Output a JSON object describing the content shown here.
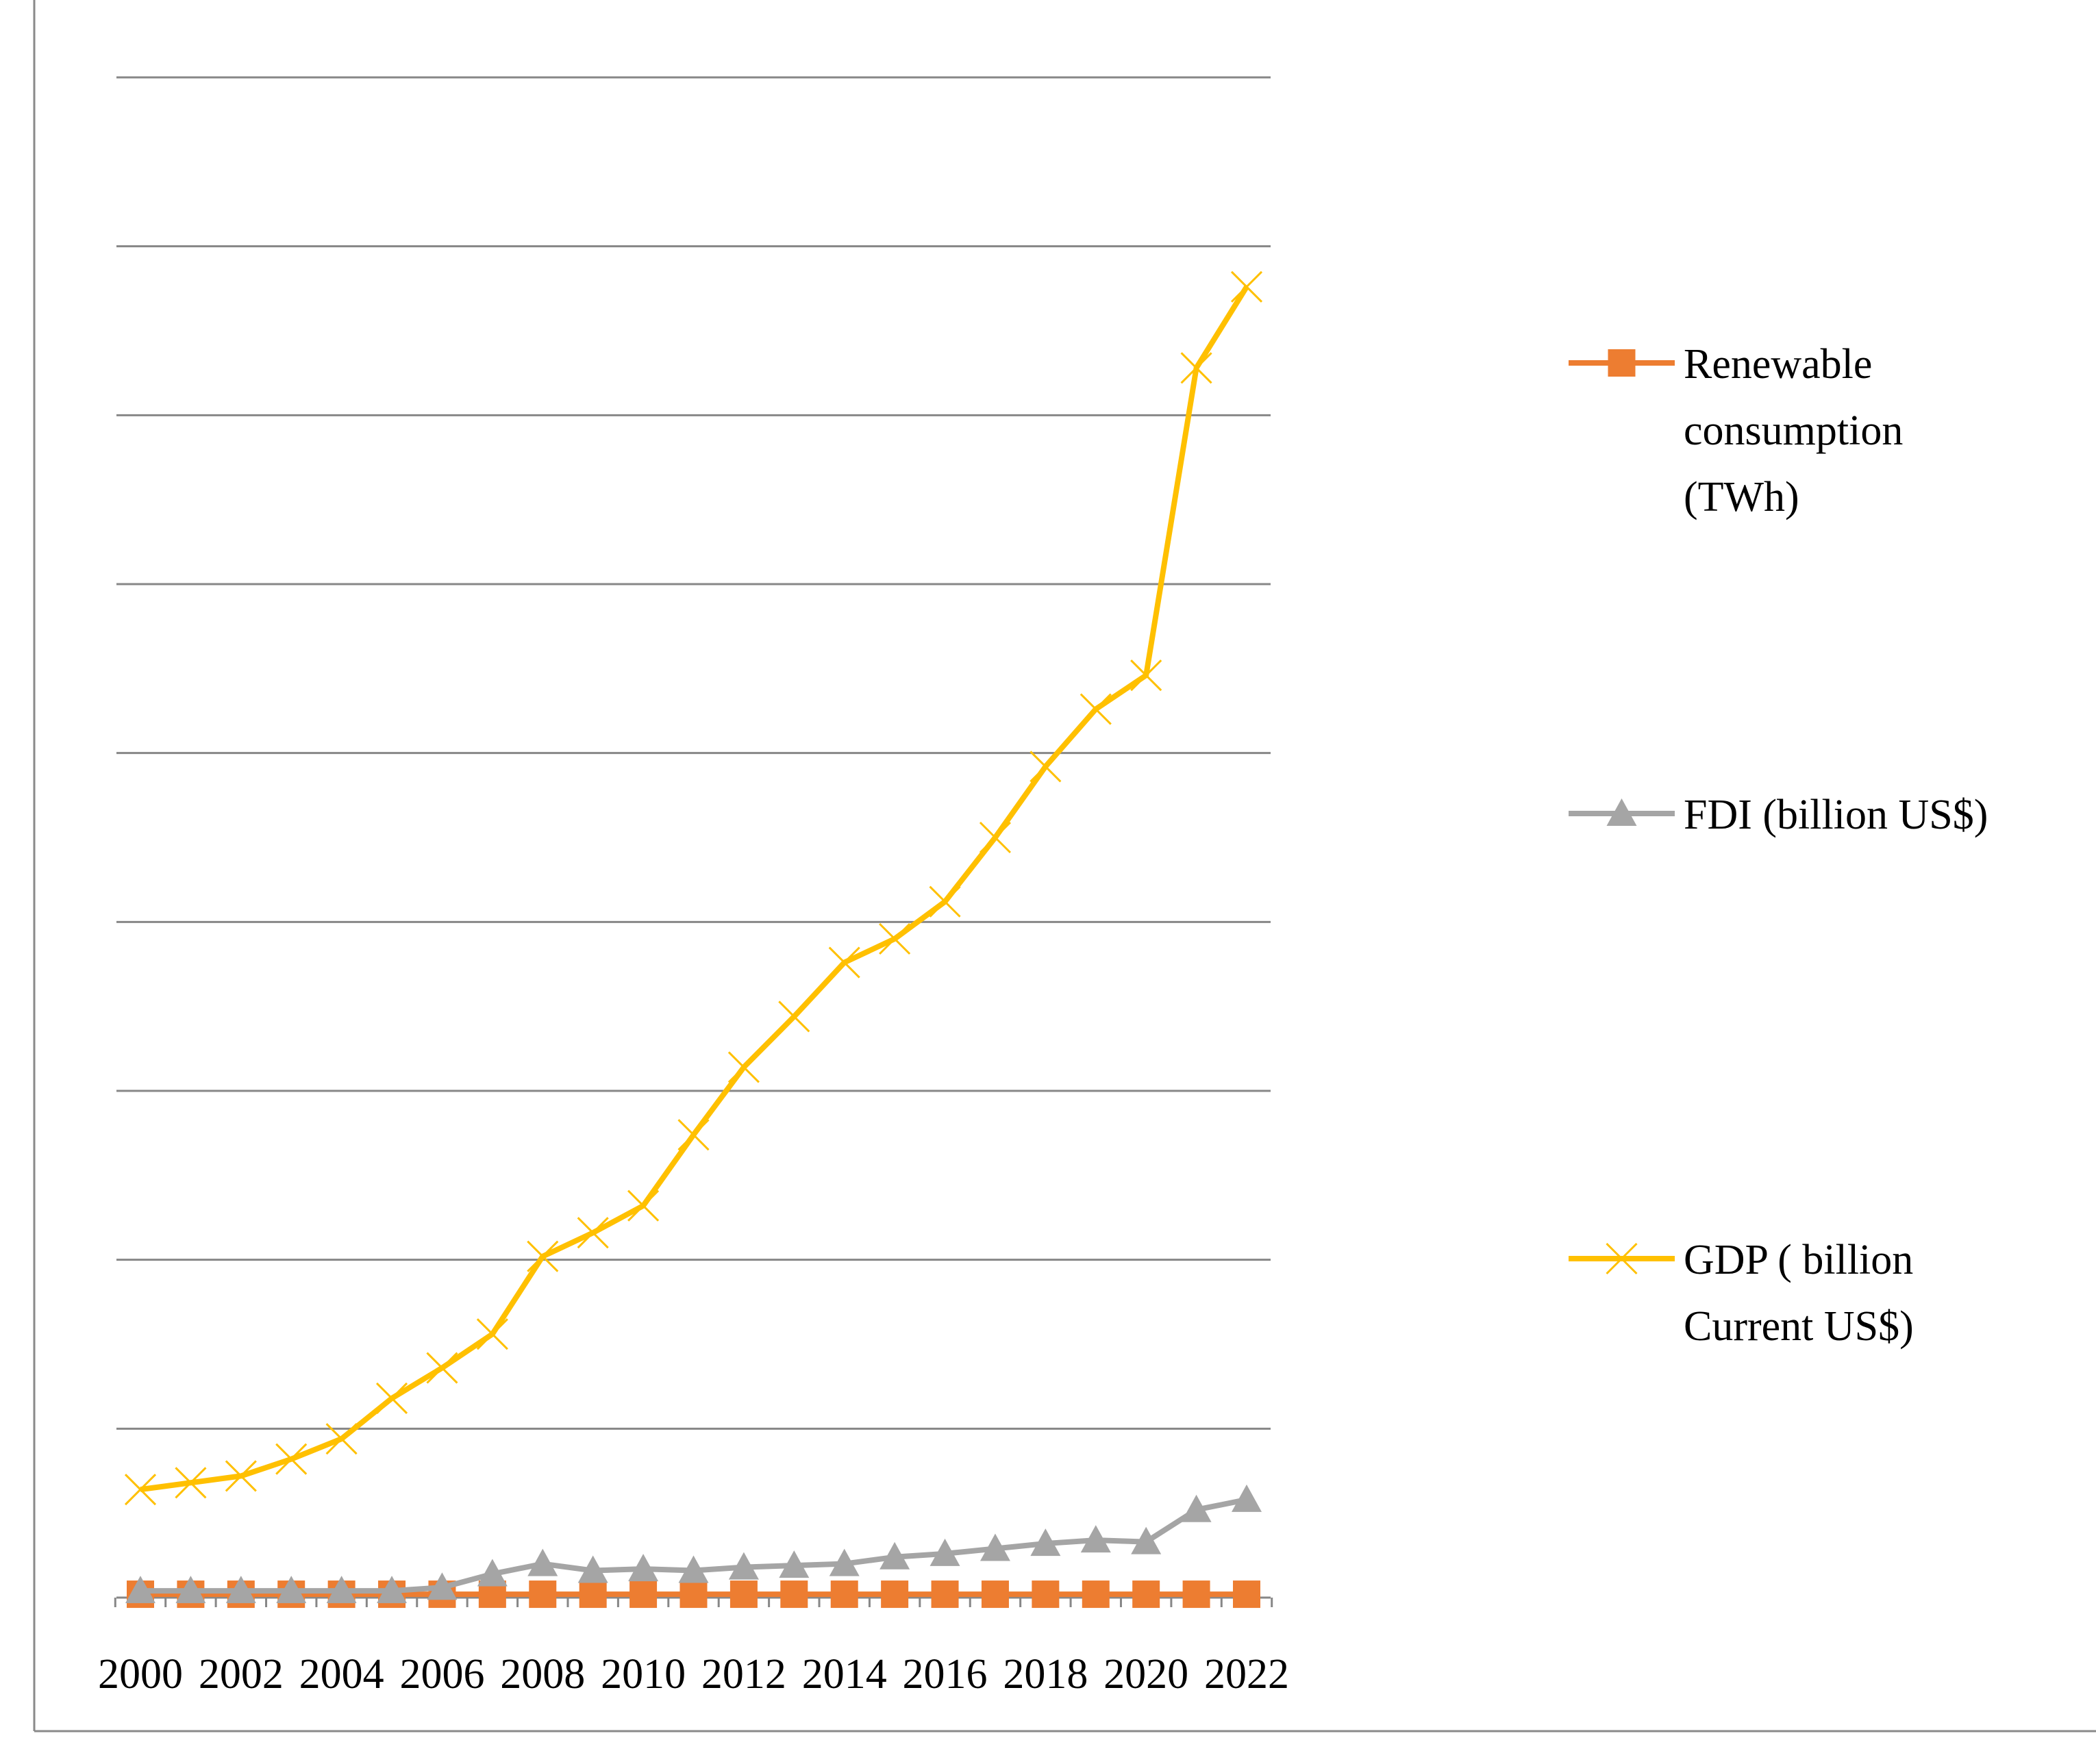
{
  "chart_data": {
    "type": "line",
    "title": "",
    "xlabel": "",
    "ylabel": "",
    "grid": true,
    "legend_position": "right",
    "ylim": [
      0,
      450
    ],
    "x": [
      "2000",
      "2001",
      "2002",
      "2003",
      "2004",
      "2005",
      "2006",
      "2007",
      "2008",
      "2009",
      "2010",
      "2011",
      "2012",
      "2013",
      "2014",
      "2015",
      "2016",
      "2017",
      "2018",
      "2019",
      "2020",
      "2021",
      "2022"
    ],
    "x_tick_labels": [
      "2000",
      "2002",
      "2004",
      "2006",
      "2008",
      "2010",
      "2012",
      "2014",
      "2016",
      "2018",
      "2020",
      "2022"
    ],
    "series": [
      {
        "name": "Renewable consumption (TWh)",
        "legend_lines": [
          "Renewable",
          "consumption",
          "(TWh)"
        ],
        "color": "#ED7D31",
        "marker": "square",
        "values": [
          1,
          1,
          1,
          1,
          1,
          1,
          1,
          1,
          1,
          1,
          1,
          1,
          1,
          1,
          1,
          1,
          1,
          1,
          1,
          1,
          1,
          1,
          1
        ]
      },
      {
        "name": "FDI (billion US$)",
        "legend_lines": [
          "FDI (billion US$)"
        ],
        "color": "#A5A5A5",
        "marker": "triangle",
        "values": [
          2,
          2,
          2,
          2,
          2,
          2,
          3,
          7,
          10,
          8,
          8.5,
          8,
          9,
          9.5,
          10,
          12,
          13,
          14.5,
          16,
          17,
          16.5,
          26,
          29
        ]
      },
      {
        "name": "GDP ( billion Current US$)",
        "legend_lines": [
          "GDP ( billion",
          "Current US$)"
        ],
        "color": "#FFC000",
        "marker": "x",
        "values": [
          32,
          34,
          36,
          41,
          47,
          59,
          68,
          78,
          101,
          108,
          116,
          137,
          157,
          172,
          188,
          195,
          206,
          225,
          246,
          263,
          273,
          364,
          388
        ]
      }
    ]
  }
}
